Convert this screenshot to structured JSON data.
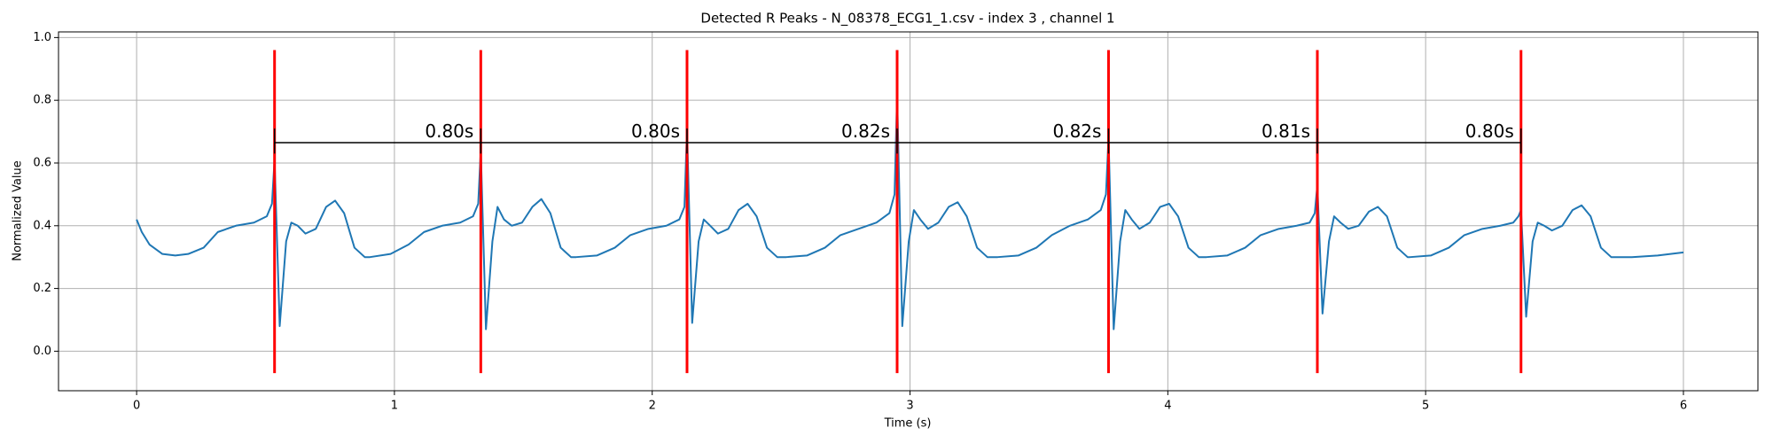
{
  "chart_data": {
    "type": "line",
    "title": "Detected R Peaks - N_08378_ECG1_1.csv - index 3 , channel 1",
    "x_label": "Time (s)",
    "y_label": "Normalized Value",
    "xlim": [
      -0.303,
      6.289
    ],
    "ylim": [
      -0.126,
      1.018
    ],
    "xticks": [
      0,
      1,
      2,
      3,
      4,
      5,
      6
    ],
    "yticks": [
      {
        "value": 0,
        "label": "0.0"
      },
      {
        "value": 0.2,
        "label": "0.2"
      },
      {
        "value": 0.4,
        "label": "0.4"
      },
      {
        "value": 0.6,
        "label": "0.6"
      },
      {
        "value": 0.8,
        "label": "0.8"
      },
      {
        "value": 1,
        "label": "1.0"
      }
    ],
    "grid": true,
    "series": [
      {
        "color": "#1f77b4",
        "x": [
          0,
          0.02,
          0.05,
          0.1,
          0.15,
          0.2,
          0.26,
          0.315,
          0.385,
          0.455,
          0.505,
          0.525,
          0.535,
          0.555,
          0.58,
          0.6,
          0.625,
          0.655,
          0.695,
          0.735,
          0.77,
          0.805,
          0.845,
          0.885,
          0.905,
          0.985,
          1.055,
          1.115,
          1.185,
          1.255,
          1.305,
          1.325,
          1.335,
          1.355,
          1.38,
          1.4,
          1.425,
          1.455,
          1.495,
          1.535,
          1.57,
          1.605,
          1.645,
          1.685,
          1.705,
          1.785,
          1.855,
          1.915,
          1.985,
          2.055,
          2.105,
          2.125,
          2.135,
          2.155,
          2.18,
          2.2,
          2.225,
          2.255,
          2.295,
          2.335,
          2.37,
          2.405,
          2.445,
          2.485,
          2.52,
          2.6,
          2.67,
          2.73,
          2.8,
          2.87,
          2.92,
          2.94,
          2.95,
          2.97,
          2.995,
          3.015,
          3.04,
          3.07,
          3.11,
          3.15,
          3.185,
          3.22,
          3.26,
          3.3,
          3.34,
          3.42,
          3.49,
          3.55,
          3.62,
          3.69,
          3.74,
          3.76,
          3.77,
          3.79,
          3.815,
          3.835,
          3.86,
          3.89,
          3.93,
          3.97,
          4.005,
          4.04,
          4.08,
          4.12,
          4.15,
          4.23,
          4.3,
          4.36,
          4.43,
          4.5,
          4.55,
          4.57,
          4.58,
          4.6,
          4.625,
          4.645,
          4.67,
          4.7,
          4.74,
          4.78,
          4.815,
          4.85,
          4.89,
          4.93,
          4.94,
          5.02,
          5.09,
          5.15,
          5.22,
          5.29,
          5.34,
          5.36,
          5.37,
          5.39,
          5.415,
          5.435,
          5.46,
          5.49,
          5.53,
          5.57,
          5.605,
          5.64,
          5.68,
          5.72,
          5.8,
          5.9,
          6.0
        ],
        "values": [
          0.42,
          0.38,
          0.34,
          0.31,
          0.305,
          0.31,
          0.33,
          0.38,
          0.4,
          0.41,
          0.43,
          0.47,
          0.61,
          0.08,
          0.35,
          0.41,
          0.4,
          0.375,
          0.39,
          0.46,
          0.48,
          0.44,
          0.33,
          0.3,
          0.3,
          0.31,
          0.34,
          0.38,
          0.4,
          0.41,
          0.43,
          0.47,
          0.64,
          0.07,
          0.35,
          0.46,
          0.42,
          0.4,
          0.41,
          0.46,
          0.485,
          0.44,
          0.33,
          0.3,
          0.3,
          0.305,
          0.33,
          0.37,
          0.39,
          0.4,
          0.42,
          0.46,
          0.71,
          0.09,
          0.35,
          0.42,
          0.4,
          0.375,
          0.39,
          0.45,
          0.47,
          0.43,
          0.33,
          0.3,
          0.3,
          0.305,
          0.33,
          0.37,
          0.39,
          0.41,
          0.44,
          0.5,
          0.82,
          0.08,
          0.35,
          0.45,
          0.42,
          0.39,
          0.41,
          0.46,
          0.475,
          0.43,
          0.33,
          0.3,
          0.3,
          0.305,
          0.33,
          0.37,
          0.4,
          0.42,
          0.45,
          0.5,
          0.68,
          0.07,
          0.35,
          0.45,
          0.42,
          0.39,
          0.41,
          0.46,
          0.47,
          0.43,
          0.33,
          0.3,
          0.3,
          0.305,
          0.33,
          0.37,
          0.39,
          0.4,
          0.41,
          0.44,
          0.53,
          0.12,
          0.35,
          0.43,
          0.41,
          0.39,
          0.4,
          0.445,
          0.46,
          0.43,
          0.33,
          0.3,
          0.3,
          0.305,
          0.33,
          0.37,
          0.39,
          0.4,
          0.41,
          0.43,
          0.45,
          0.11,
          0.35,
          0.41,
          0.4,
          0.385,
          0.4,
          0.45,
          0.465,
          0.43,
          0.33,
          0.3,
          0.3,
          0.305,
          0.315
        ]
      }
    ],
    "peaks": {
      "x": [
        0.535,
        1.335,
        2.135,
        2.95,
        3.77,
        4.58,
        5.37
      ],
      "ymin": -0.07,
      "ymax": 0.96,
      "color": "#ff0000"
    },
    "intervals": {
      "y": 0.665,
      "tick_range": [
        0.63,
        0.71
      ],
      "color": "#000000",
      "values": [
        0.8,
        0.8,
        0.82,
        0.82,
        0.81,
        0.8
      ],
      "value_labels": [
        "0.80s",
        "0.80s",
        "0.82s",
        "0.82s",
        "0.81s",
        "0.80s"
      ]
    }
  }
}
